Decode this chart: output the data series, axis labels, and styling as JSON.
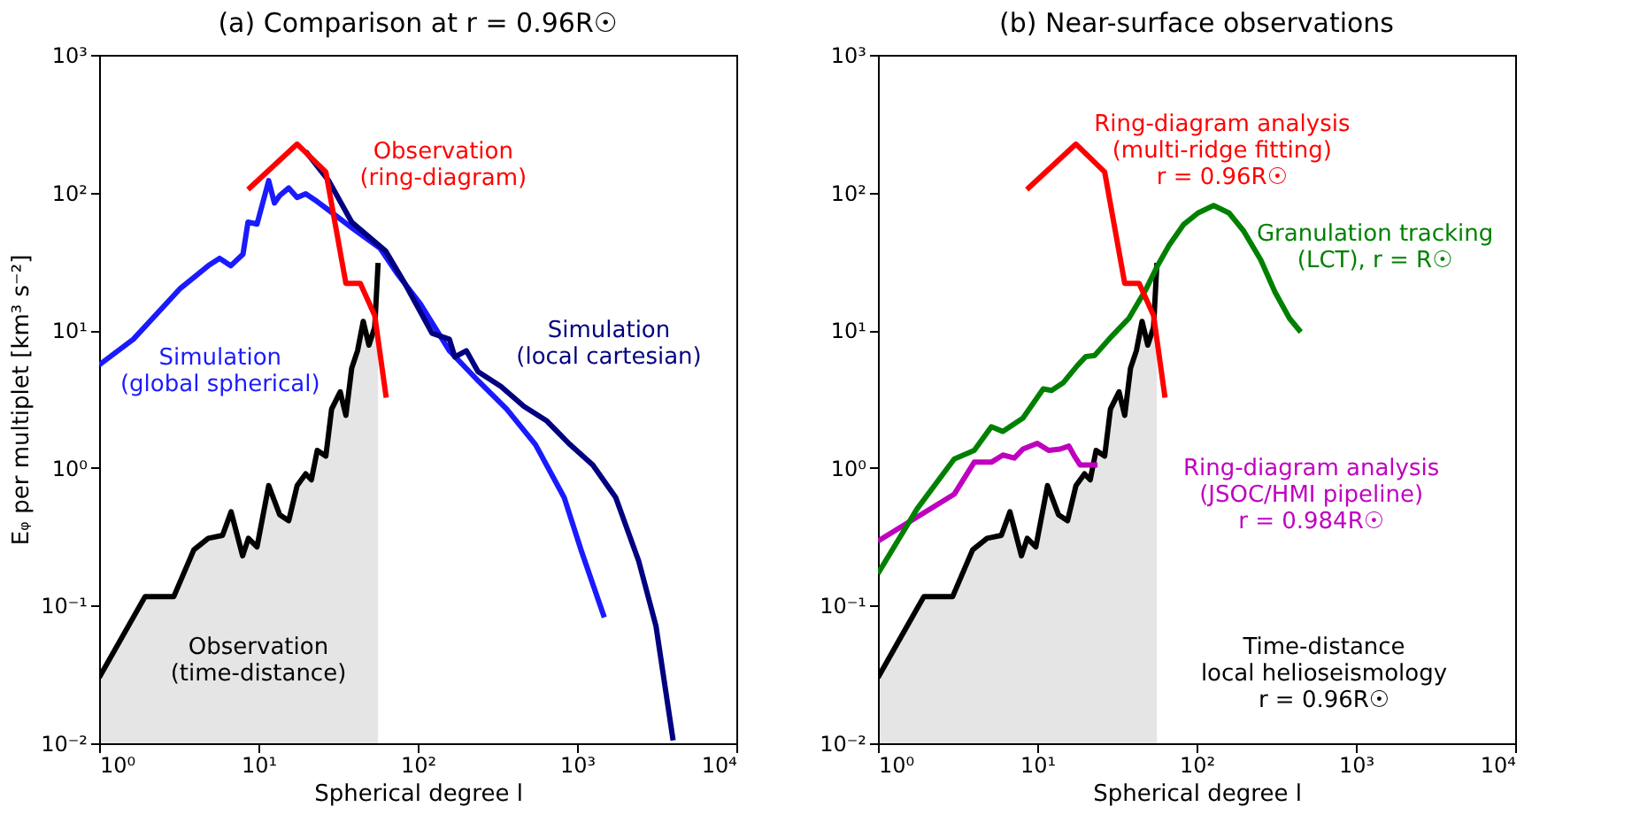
{
  "chart_data": [
    {
      "type": "line",
      "title": "(a) Comparison at r = 0.96R☉",
      "xlabel": "Spherical degree l",
      "ylabel": "Eᵩ per multiplet [km³ s⁻²]",
      "log": "xy",
      "xlim": [
        1,
        10000
      ],
      "ylim": [
        0.01,
        1000
      ],
      "xticks": [
        {
          "value": 1,
          "label": "10⁰"
        },
        {
          "value": 10,
          "label": "10¹"
        },
        {
          "value": 100,
          "label": "10²"
        },
        {
          "value": 1000,
          "label": "10³"
        },
        {
          "value": 10000,
          "label": "10⁴"
        }
      ],
      "yticks": [
        {
          "value": 0.01,
          "label": "10⁻²"
        },
        {
          "value": 0.1,
          "label": "10⁻¹"
        },
        {
          "value": 1,
          "label": "10⁰"
        },
        {
          "value": 10,
          "label": "10¹"
        },
        {
          "value": 100,
          "label": "10²"
        },
        {
          "value": 1000,
          "label": "10³"
        }
      ],
      "series": [
        {
          "type": "area",
          "name": "Observation\n(time-distance)",
          "color": "#000000",
          "x": [
            1,
            1.94,
            2.94,
            3.93,
            4.84,
            5.95,
            6.74,
            7.96,
            8.65,
            9.8,
            11.6,
            13.6,
            15.5,
            17.5,
            19.8,
            21.5,
            23.4,
            26.5,
            28.8,
            32.6,
            35.4,
            38.5,
            41.9,
            45.5,
            49.4,
            53.7,
            56.4
          ],
          "values": [
            0.03,
            0.116,
            0.116,
            0.254,
            0.308,
            0.324,
            0.48,
            0.23,
            0.308,
            0.267,
            0.745,
            0.457,
            0.414,
            0.745,
            0.906,
            0.82,
            1.34,
            1.22,
            2.67,
            3.57,
            2.41,
            5.3,
            7.1,
            11.6,
            7.8,
            10.5,
            30.8
          ]
        },
        {
          "type": "line",
          "name": "Simulation\n(global spherical)",
          "color": "#1a1aff",
          "x": [
            1,
            1.64,
            3.2,
            4.84,
            5.7,
            6.7,
            8.0,
            8.6,
            9.8,
            11.6,
            12.6,
            13.6,
            15.5,
            17.5,
            19.8,
            23.4,
            27.6,
            38.5,
            58,
            75,
            104,
            158,
            239,
            362,
            548,
            830,
            1064,
            1483
          ],
          "values": [
            5.6,
            8.6,
            19.9,
            29.4,
            33.3,
            29.4,
            35.7,
            61,
            59,
            122,
            84,
            95,
            108,
            92,
            98,
            86,
            74.5,
            55.6,
            39.4,
            25.4,
            15.5,
            7.1,
            4.3,
            2.67,
            1.48,
            0.61,
            0.25,
            0.082
          ]
        },
        {
          "type": "line",
          "name": "Simulation\n(local cartesian)",
          "color": "#000080",
          "x": [
            19.8,
            27.6,
            38.5,
            63,
            81,
            123,
            158,
            171,
            202,
            239,
            333,
            464,
            647,
            902,
            1256,
            1750,
            2440,
            3130,
            4010
          ],
          "values": [
            199,
            122,
            61,
            37.5,
            23,
            9.5,
            8.6,
            6.4,
            7.1,
            5.0,
            3.9,
            2.8,
            2.19,
            1.48,
            1.05,
            0.61,
            0.21,
            0.071,
            0.0105
          ]
        },
        {
          "type": "line",
          "name": "Observation\n(ring-diagram)",
          "color": "#ff0000",
          "x": [
            8.6,
            17.5,
            26.5,
            35.4,
            43.6,
            53.7,
            63.4
          ],
          "values": [
            105,
            225,
            141,
            21.9,
            21.9,
            12.8,
            3.24
          ]
        }
      ]
    },
    {
      "type": "line",
      "title": "(b) Near-surface observations",
      "xlabel": "Spherical degree l",
      "log": "xy",
      "xlim": [
        1,
        10000
      ],
      "ylim": [
        0.01,
        1000
      ],
      "xticks": [
        {
          "value": 1,
          "label": "10⁰"
        },
        {
          "value": 10,
          "label": "10¹"
        },
        {
          "value": 100,
          "label": "10²"
        },
        {
          "value": 1000,
          "label": "10³"
        },
        {
          "value": 10000,
          "label": "10⁴"
        }
      ],
      "yticks": [
        {
          "value": 0.01,
          "label": "10⁻²"
        },
        {
          "value": 0.1,
          "label": "10⁻¹"
        },
        {
          "value": 1,
          "label": "10⁰"
        },
        {
          "value": 10,
          "label": "10¹"
        },
        {
          "value": 100,
          "label": "10²"
        },
        {
          "value": 1000,
          "label": "10³"
        }
      ],
      "series": [
        {
          "type": "area",
          "name": "Time-distance\nlocal helioseismology\nr = 0.96R☉",
          "color": "#000000",
          "x": [
            1,
            1.94,
            2.94,
            3.93,
            4.84,
            5.95,
            6.74,
            7.96,
            8.65,
            9.8,
            11.6,
            13.6,
            15.5,
            17.5,
            19.8,
            21.5,
            23.4,
            26.5,
            28.8,
            32.6,
            35.4,
            38.5,
            41.9,
            45.5,
            49.4,
            53.7,
            56.4
          ],
          "values": [
            0.03,
            0.116,
            0.116,
            0.254,
            0.308,
            0.324,
            0.48,
            0.23,
            0.308,
            0.267,
            0.745,
            0.457,
            0.414,
            0.745,
            0.906,
            0.82,
            1.34,
            1.22,
            2.67,
            3.57,
            2.41,
            5.3,
            7.1,
            11.6,
            7.8,
            10.5,
            30.8
          ]
        },
        {
          "type": "line",
          "name": "Ring-diagram analysis\n(JSOC/HMI pipeline)\nr = 0.984R☉",
          "color": "#bf00bf",
          "x": [
            1,
            3.01,
            4.02,
            5.15,
            6.09,
            7.18,
            8.13,
            10,
            11.8,
            13.9,
            15.8,
            17.1,
            18.6,
            23.9
          ],
          "values": [
            0.294,
            0.644,
            1.1,
            1.1,
            1.24,
            1.18,
            1.37,
            1.51,
            1.34,
            1.37,
            1.44,
            1.22,
            1.05,
            1.05
          ]
        },
        {
          "type": "line",
          "name": "Granulation tracking\n(LCT), r = R☉",
          "color": "#008000",
          "x": [
            1,
            1.76,
            3.01,
            4.02,
            5.15,
            6.09,
            8.13,
            10.9,
            12.3,
            14.5,
            17.9,
            20.2,
            22.9,
            29.4,
            37.6,
            48.2,
            56.9,
            67.2,
            82.7,
            102,
            128,
            160,
            197,
            253,
            311,
            383,
            451
          ],
          "values": [
            0.171,
            0.504,
            1.16,
            1.34,
            1.99,
            1.84,
            2.3,
            3.75,
            3.65,
            4.14,
            5.56,
            6.44,
            6.56,
            9.06,
            12.2,
            19.9,
            29.4,
            41.4,
            58.4,
            71.0,
            80.5,
            71.0,
            52.8,
            32.4,
            18.9,
            12.2,
            9.7
          ]
        },
        {
          "type": "line",
          "name": "Ring-diagram analysis\n(multi-ridge fitting)\nr = 0.96R☉",
          "color": "#ff0000",
          "x": [
            8.6,
            17.5,
            26.5,
            35.4,
            43.6,
            53.7,
            63.4
          ],
          "values": [
            105,
            225,
            141,
            21.9,
            21.9,
            12.8,
            3.24
          ]
        }
      ]
    }
  ]
}
